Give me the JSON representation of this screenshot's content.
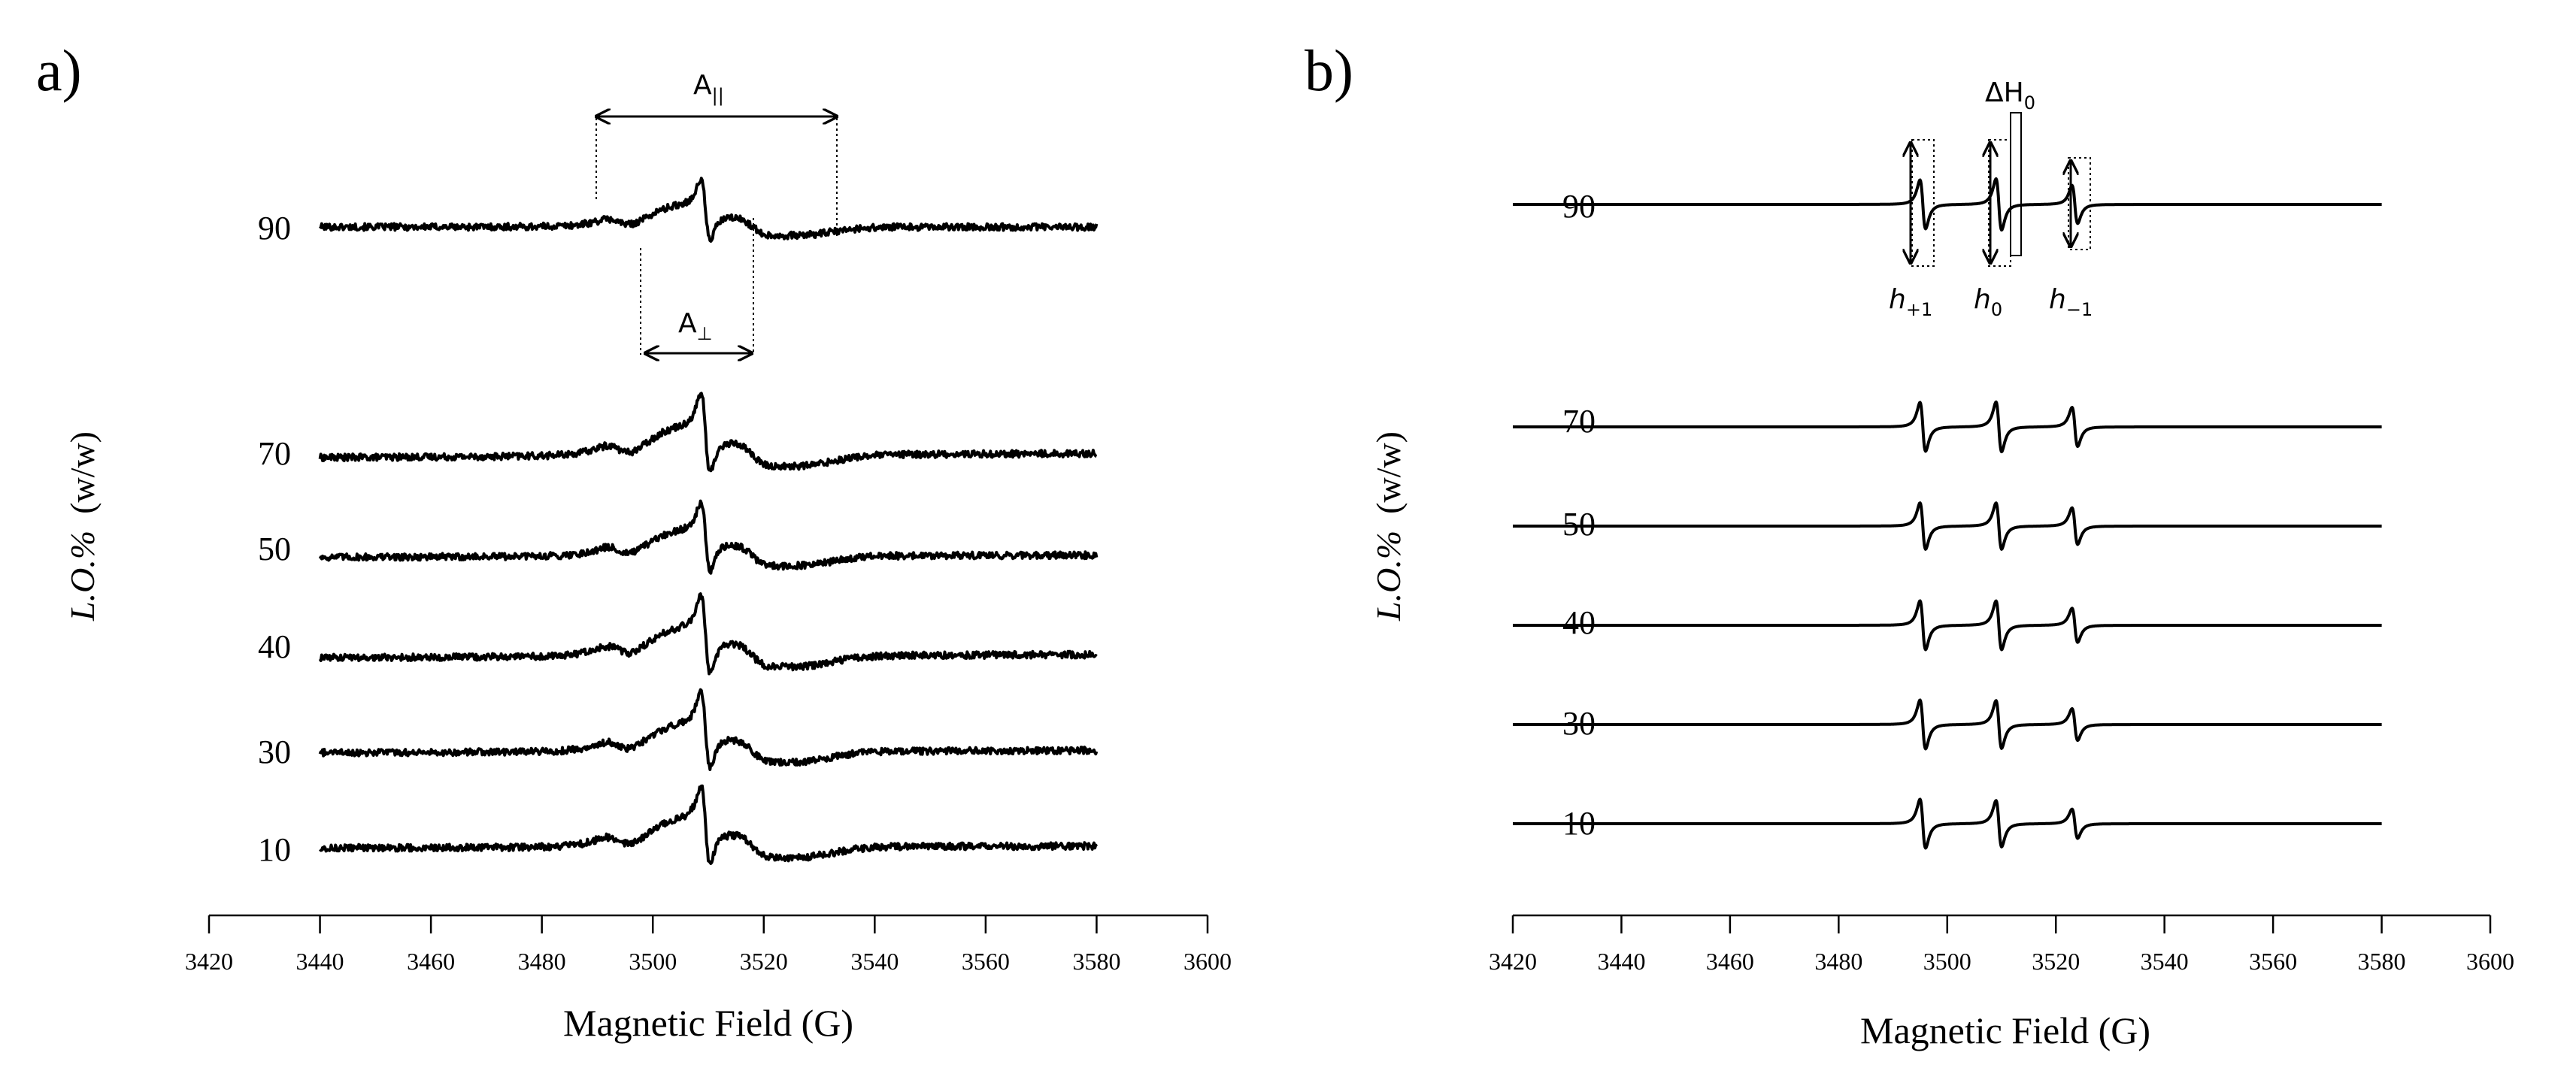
{
  "chart_data": [
    {
      "panel": "a)",
      "type": "line",
      "subtype": "experimental EPR spectra (first derivative)",
      "xlabel": "Magnetic Field  (G)",
      "ylabel_italic": "L.O.%",
      "ylabel_unit": "(w/w)",
      "xlim": [
        3420,
        3600
      ],
      "xticks": [
        "3420",
        "3440",
        "3460",
        "3480",
        "3500",
        "3520",
        "3540",
        "3560",
        "3580",
        "3600"
      ],
      "series": [
        {
          "name": "90",
          "x_range": [
            3440,
            3580
          ]
        },
        {
          "name": "70",
          "x_range": [
            3440,
            3580
          ]
        },
        {
          "name": "50",
          "x_range": [
            3440,
            3580
          ]
        },
        {
          "name": "40",
          "x_range": [
            3440,
            3580
          ]
        },
        {
          "name": "30",
          "x_range": [
            3440,
            3580
          ]
        },
        {
          "name": "10",
          "x_range": [
            3440,
            3580
          ]
        }
      ],
      "annotations": {
        "a_parallel": {
          "label": "A",
          "sub": "||",
          "from": 3490,
          "to": 3533
        },
        "a_perp": {
          "label": "A",
          "sub": "⊥",
          "from": 3499,
          "to": 3518
        }
      }
    },
    {
      "panel": "b)",
      "type": "line",
      "subtype": "simulated EPR spectra (first derivative, three lines)",
      "xlabel": "Magnetic Field  (G)",
      "ylabel_italic": "L.O.%",
      "ylabel_unit": "(w/w)",
      "xlim": [
        3420,
        3600
      ],
      "xticks": [
        "3420",
        "3440",
        "3460",
        "3480",
        "3500",
        "3520",
        "3540",
        "3560",
        "3580",
        "3600"
      ],
      "series": [
        {
          "name": "90",
          "x_range": [
            3420,
            3580
          ],
          "line_centers": [
            3495.5,
            3509.5,
            3523.5
          ]
        },
        {
          "name": "70",
          "x_range": [
            3420,
            3580
          ],
          "line_centers": [
            3495.5,
            3509.5,
            3523.5
          ]
        },
        {
          "name": "50",
          "x_range": [
            3420,
            3580
          ],
          "line_centers": [
            3495.5,
            3509.5,
            3523.5
          ]
        },
        {
          "name": "40",
          "x_range": [
            3420,
            3580
          ],
          "line_centers": [
            3495.5,
            3509.5,
            3523.5
          ]
        },
        {
          "name": "30",
          "x_range": [
            3420,
            3580
          ],
          "line_centers": [
            3495.5,
            3509.5,
            3523.5
          ]
        },
        {
          "name": "10",
          "x_range": [
            3420,
            3580
          ],
          "line_centers": [
            3495.5,
            3509.5,
            3523.5
          ]
        }
      ],
      "annotations": {
        "delta_h": {
          "label": "ΔH",
          "sub": "0"
        },
        "h_plus": {
          "label": "h",
          "sub": "+1"
        },
        "h_zero": {
          "label": "h",
          "sub": "0"
        },
        "h_minus": {
          "label": "h",
          "sub": "−1"
        }
      }
    }
  ]
}
